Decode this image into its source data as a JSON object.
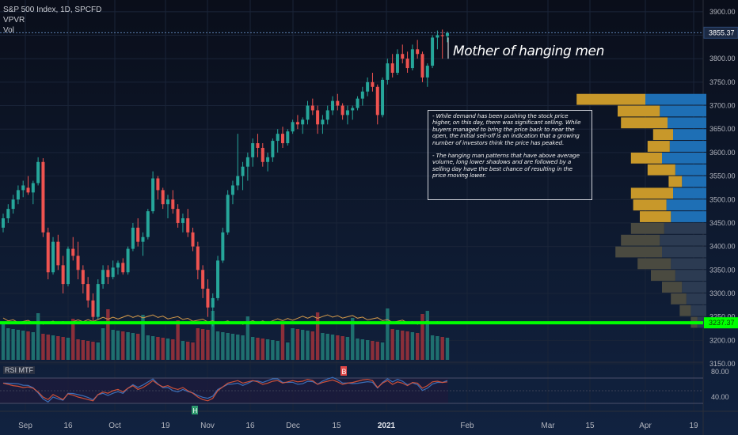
{
  "header": {
    "symbol": "S&P 500 Index, 1D, SPCFD",
    "indicator1": "VPVR",
    "indicator2": "Vol"
  },
  "callout": "Mother of hanging men",
  "annotation": {
    "para1": "- While demand has been pushing the stock price higher, on this day, there was significant selling. While buyers managed to bring the price back to near the open, the initial sell-off is an indication that a growing number of investors think the price has peaked.",
    "para2": "- The hanging man patterns that have above average volume, long lower shadows and are followed by a selling day have the best chance of resulting in the price moving lower."
  },
  "rsi": {
    "label": "RSI MTF",
    "ticks": [
      "80.00",
      "40.00"
    ],
    "marker_top": "B",
    "marker_bottom": "H"
  },
  "price_label": "3855.37",
  "level_label": "3237.37",
  "colors": {
    "up": "#26a69a",
    "down": "#ef5350",
    "vol_up": "#1f6f6f",
    "vol_down": "#8b2f3a",
    "level": "#00ff00",
    "vpvr_up": "#1e6fb5",
    "vpvr_down": "#c8982a",
    "vpvr_grey_up": "#2c3b52",
    "vpvr_grey_down": "#4a4a40"
  },
  "chart_data": {
    "type": "candlestick",
    "y_axis": {
      "ylim": [
        3150,
        3925
      ],
      "ticks": [
        "3900.00",
        "3850.00",
        "3800.00",
        "3750.00",
        "3700.00",
        "3650.00",
        "3600.00",
        "3550.00",
        "3500.00",
        "3450.00",
        "3400.00",
        "3350.00",
        "3300.00",
        "3250.00",
        "3200.00",
        "3150.00"
      ]
    },
    "x_axis": {
      "labels": [
        "Sep",
        "16",
        "Oct",
        "19",
        "Nov",
        "16",
        "Dec",
        "15",
        "2021",
        "Feb",
        "Mar",
        "15",
        "Apr",
        "19"
      ]
    },
    "candles": [
      [
        3440,
        3470,
        3430,
        3460
      ],
      [
        3460,
        3490,
        3450,
        3480
      ],
      [
        3480,
        3510,
        3470,
        3500
      ],
      [
        3500,
        3530,
        3490,
        3520
      ],
      [
        3520,
        3540,
        3505,
        3530
      ],
      [
        3525,
        3550,
        3510,
        3515
      ],
      [
        3515,
        3540,
        3490,
        3535
      ],
      [
        3535,
        3590,
        3530,
        3580
      ],
      [
        3580,
        3588,
        3420,
        3430
      ],
      [
        3430,
        3440,
        3330,
        3345
      ],
      [
        3345,
        3420,
        3340,
        3410
      ],
      [
        3410,
        3425,
        3350,
        3360
      ],
      [
        3360,
        3380,
        3300,
        3320
      ],
      [
        3320,
        3400,
        3315,
        3395
      ],
      [
        3395,
        3420,
        3370,
        3380
      ],
      [
        3380,
        3410,
        3330,
        3350
      ],
      [
        3350,
        3360,
        3300,
        3320
      ],
      [
        3320,
        3335,
        3270,
        3285
      ],
      [
        3285,
        3300,
        3240,
        3250
      ],
      [
        3250,
        3330,
        3245,
        3320
      ],
      [
        3320,
        3360,
        3310,
        3350
      ],
      [
        3350,
        3360,
        3320,
        3335
      ],
      [
        3335,
        3370,
        3330,
        3355
      ],
      [
        3355,
        3370,
        3340,
        3365
      ],
      [
        3365,
        3375,
        3340,
        3345
      ],
      [
        3345,
        3400,
        3340,
        3395
      ],
      [
        3395,
        3450,
        3390,
        3440
      ],
      [
        3440,
        3460,
        3400,
        3410
      ],
      [
        3410,
        3430,
        3380,
        3420
      ],
      [
        3420,
        3480,
        3415,
        3475
      ],
      [
        3475,
        3560,
        3470,
        3545
      ],
      [
        3545,
        3550,
        3500,
        3520
      ],
      [
        3520,
        3525,
        3480,
        3490
      ],
      [
        3490,
        3510,
        3460,
        3500
      ],
      [
        3500,
        3520,
        3470,
        3480
      ],
      [
        3480,
        3490,
        3440,
        3450
      ],
      [
        3450,
        3470,
        3430,
        3460
      ],
      [
        3460,
        3480,
        3420,
        3430
      ],
      [
        3430,
        3440,
        3390,
        3400
      ],
      [
        3400,
        3410,
        3330,
        3350
      ],
      [
        3350,
        3360,
        3290,
        3310
      ],
      [
        3310,
        3330,
        3250,
        3270
      ],
      [
        3270,
        3300,
        3230,
        3290
      ],
      [
        3290,
        3380,
        3285,
        3370
      ],
      [
        3370,
        3440,
        3365,
        3430
      ],
      [
        3430,
        3520,
        3425,
        3510
      ],
      [
        3510,
        3540,
        3490,
        3530
      ],
      [
        3530,
        3640,
        3520,
        3550
      ],
      [
        3550,
        3580,
        3520,
        3570
      ],
      [
        3570,
        3600,
        3540,
        3590
      ],
      [
        3590,
        3630,
        3570,
        3620
      ],
      [
        3620,
        3640,
        3590,
        3610
      ],
      [
        3610,
        3620,
        3570,
        3580
      ],
      [
        3580,
        3600,
        3560,
        3590
      ],
      [
        3590,
        3630,
        3580,
        3625
      ],
      [
        3625,
        3650,
        3600,
        3640
      ],
      [
        3640,
        3655,
        3610,
        3620
      ],
      [
        3620,
        3650,
        3615,
        3645
      ],
      [
        3645,
        3670,
        3640,
        3665
      ],
      [
        3665,
        3680,
        3650,
        3660
      ],
      [
        3660,
        3675,
        3640,
        3670
      ],
      [
        3670,
        3710,
        3660,
        3700
      ],
      [
        3700,
        3715,
        3680,
        3690
      ],
      [
        3690,
        3700,
        3640,
        3660
      ],
      [
        3660,
        3680,
        3640,
        3670
      ],
      [
        3670,
        3700,
        3660,
        3690
      ],
      [
        3690,
        3720,
        3680,
        3710
      ],
      [
        3710,
        3725,
        3690,
        3700
      ],
      [
        3700,
        3705,
        3670,
        3680
      ],
      [
        3680,
        3700,
        3660,
        3690
      ],
      [
        3690,
        3700,
        3670,
        3695
      ],
      [
        3695,
        3720,
        3690,
        3715
      ],
      [
        3715,
        3740,
        3700,
        3730
      ],
      [
        3730,
        3760,
        3720,
        3750
      ],
      [
        3750,
        3770,
        3730,
        3740
      ],
      [
        3740,
        3745,
        3660,
        3680
      ],
      [
        3680,
        3760,
        3675,
        3755
      ],
      [
        3755,
        3800,
        3745,
        3790
      ],
      [
        3790,
        3810,
        3760,
        3770
      ],
      [
        3770,
        3820,
        3765,
        3810
      ],
      [
        3810,
        3830,
        3790,
        3800
      ],
      [
        3800,
        3815,
        3770,
        3780
      ],
      [
        3780,
        3830,
        3775,
        3820
      ],
      [
        3820,
        3840,
        3800,
        3810
      ],
      [
        3810,
        3815,
        3750,
        3760
      ],
      [
        3760,
        3790,
        3740,
        3785
      ],
      [
        3785,
        3850,
        3780,
        3845
      ],
      [
        3845,
        3860,
        3820,
        3850
      ],
      [
        3850,
        3862,
        3800,
        3848
      ],
      [
        3848,
        3858,
        3835,
        3855
      ]
    ],
    "rsi_values": [
      62,
      60,
      58,
      57,
      55,
      56,
      54,
      48,
      40,
      36,
      44,
      40,
      36,
      45,
      43,
      40,
      38,
      36,
      34,
      44,
      48,
      46,
      50,
      52,
      48,
      54,
      58,
      52,
      55,
      60,
      66,
      60,
      56,
      58,
      54,
      52,
      55,
      50,
      46,
      40,
      36,
      34,
      38,
      50,
      56,
      62,
      64,
      66,
      62,
      64,
      66,
      64,
      60,
      62,
      65,
      66,
      62,
      64,
      66,
      64,
      65,
      68,
      66,
      60,
      63,
      65,
      67,
      64,
      60,
      62,
      63,
      65,
      67,
      68,
      66,
      55,
      62,
      66,
      60,
      64,
      62,
      58,
      63,
      62,
      54,
      58,
      64,
      65,
      63,
      64
    ],
    "vpvr": [
      {
        "price": 3712.5,
        "up": 0.55,
        "down": 0.62
      },
      {
        "price": 3687.5,
        "up": 0.42,
        "down": 0.38
      },
      {
        "price": 3662.5,
        "up": 0.35,
        "down": 0.42
      },
      {
        "price": 3637.5,
        "up": 0.3,
        "down": 0.18
      },
      {
        "price": 3612.5,
        "up": 0.33,
        "down": 0.2
      },
      {
        "price": 3587.5,
        "up": 0.4,
        "down": 0.28
      },
      {
        "price": 3562.5,
        "up": 0.28,
        "down": 0.25
      },
      {
        "price": 3537.5,
        "up": 0.22,
        "down": 0.12
      },
      {
        "price": 3512.5,
        "up": 0.3,
        "down": 0.38
      },
      {
        "price": 3487.5,
        "up": 0.36,
        "down": 0.3
      },
      {
        "price": 3462.5,
        "up": 0.32,
        "down": 0.28
      },
      {
        "price": 3437.5,
        "up": 0.38,
        "down": 0.3
      },
      {
        "price": 3412.5,
        "up": 0.42,
        "down": 0.35
      },
      {
        "price": 3387.5,
        "up": 0.4,
        "down": 0.42
      },
      {
        "price": 3362.5,
        "up": 0.32,
        "down": 0.3
      },
      {
        "price": 3337.5,
        "up": 0.28,
        "down": 0.22
      },
      {
        "price": 3312.5,
        "up": 0.22,
        "down": 0.18
      },
      {
        "price": 3287.5,
        "up": 0.18,
        "down": 0.14
      },
      {
        "price": 3262.5,
        "up": 0.14,
        "down": 0.1
      },
      {
        "price": 3237.5,
        "up": 0.08,
        "down": 0.06
      }
    ]
  }
}
